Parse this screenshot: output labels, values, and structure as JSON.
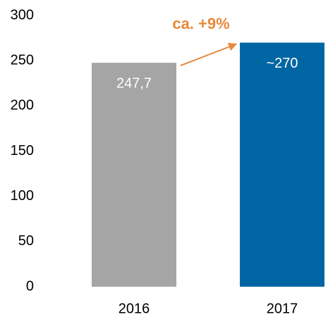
{
  "chart_data": {
    "type": "bar",
    "categories": [
      "2016",
      "2017"
    ],
    "values": [
      247.7,
      270
    ],
    "value_labels": [
      "247,7",
      "~270"
    ],
    "colors": [
      "#a5a5a5",
      "#0066a3"
    ],
    "annotation": "ca. +9%",
    "annotation_color": "#e8893a",
    "ylim": [
      0,
      300
    ],
    "yticks": [
      0,
      50,
      100,
      150,
      200,
      250,
      300
    ],
    "grid": false
  }
}
